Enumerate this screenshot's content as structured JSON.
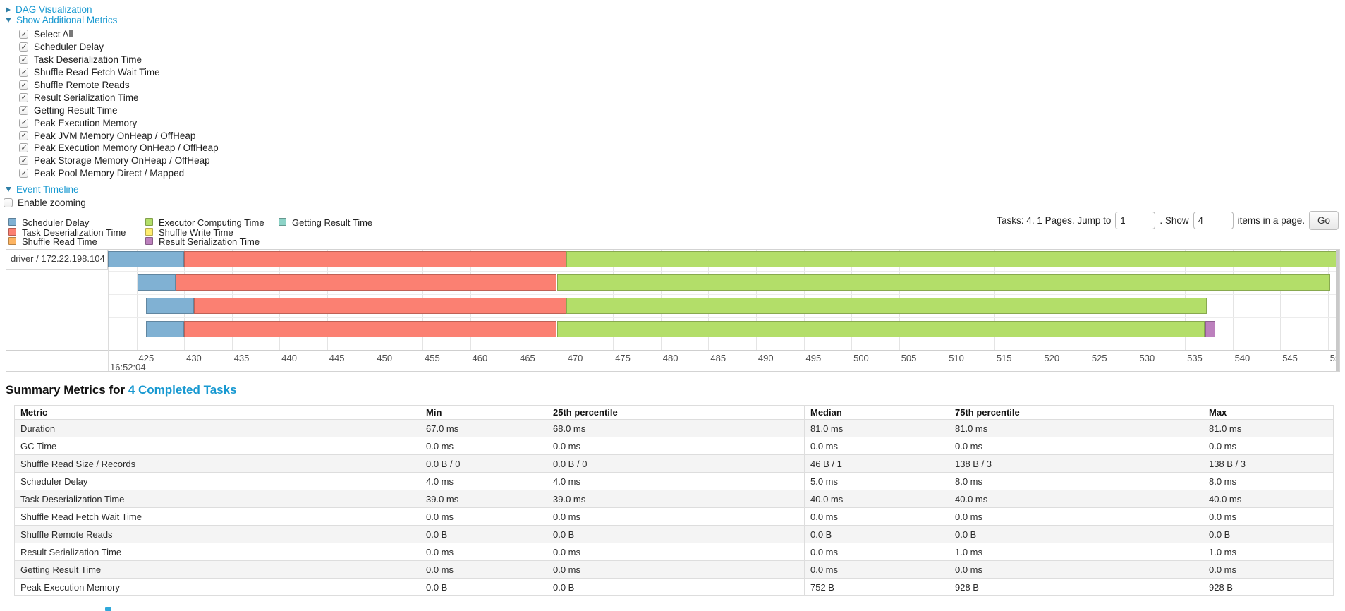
{
  "toggles": {
    "dag": "DAG Visualization",
    "metrics": "Show Additional Metrics",
    "timeline": "Event Timeline"
  },
  "metric_checkboxes": [
    {
      "label": "Select All",
      "checked": true
    },
    {
      "label": "Scheduler Delay",
      "checked": true
    },
    {
      "label": "Task Deserialization Time",
      "checked": true
    },
    {
      "label": "Shuffle Read Fetch Wait Time",
      "checked": true
    },
    {
      "label": "Shuffle Remote Reads",
      "checked": true
    },
    {
      "label": "Result Serialization Time",
      "checked": true
    },
    {
      "label": "Getting Result Time",
      "checked": true
    },
    {
      "label": "Peak Execution Memory",
      "checked": true
    },
    {
      "label": "Peak JVM Memory OnHeap / OffHeap",
      "checked": true
    },
    {
      "label": "Peak Execution Memory OnHeap / OffHeap",
      "checked": true
    },
    {
      "label": "Peak Storage Memory OnHeap / OffHeap",
      "checked": true
    },
    {
      "label": "Peak Pool Memory Direct / Mapped",
      "checked": true
    }
  ],
  "zoom_checkbox": {
    "label": "Enable zooming",
    "checked": false
  },
  "colors": {
    "scheduler_delay": "#80B1D3",
    "task_deserialization_time": "#FB8072",
    "shuffle_read_time": "#FDB462",
    "executor_computing_time": "#B3DE69",
    "shuffle_write_time": "#FFED6F",
    "result_serialization_time": "#BC80BD",
    "getting_result_time": "#8DD3C7",
    "link": "#1899d1"
  },
  "legend": {
    "columns": [
      [
        {
          "label": "Scheduler Delay",
          "key": "scheduler_delay"
        },
        {
          "label": "Task Deserialization Time",
          "key": "task_deserialization_time"
        },
        {
          "label": "Shuffle Read Time",
          "key": "shuffle_read_time"
        }
      ],
      [
        {
          "label": "Executor Computing Time",
          "key": "executor_computing_time"
        },
        {
          "label": "Shuffle Write Time",
          "key": "shuffle_write_time"
        },
        {
          "label": "Result Serialization Time",
          "key": "result_serialization_time"
        }
      ],
      [
        {
          "label": "Getting Result Time",
          "key": "getting_result_time"
        }
      ]
    ]
  },
  "pagination": {
    "tasks_text": "Tasks: 4. 1 Pages. Jump to",
    "jump_value": "1",
    "show_text": ". Show",
    "show_value": "4",
    "items_text": "items in a page.",
    "go_label": "Go"
  },
  "timeline": {
    "group_label": "driver / 172.22.198.104",
    "axis": {
      "min": 422.0,
      "max": 551.2,
      "tick_start": 425,
      "tick_end": 550,
      "tick_step": 5,
      "major_label": "16:52:04"
    },
    "bars": [
      {
        "segments": [
          {
            "key": "scheduler_delay",
            "start": 421.9,
            "end": 430.0
          },
          {
            "key": "task_deserialization_time",
            "start": 430.0,
            "end": 470.1
          },
          {
            "key": "executor_computing_time",
            "start": 470.1,
            "end": 551.2
          }
        ]
      },
      {
        "segments": [
          {
            "key": "scheduler_delay",
            "start": 425.1,
            "end": 429.1
          },
          {
            "key": "task_deserialization_time",
            "start": 429.1,
            "end": 469.1
          },
          {
            "key": "executor_computing_time",
            "start": 469.1,
            "end": 550.2
          }
        ]
      },
      {
        "segments": [
          {
            "key": "scheduler_delay",
            "start": 426.0,
            "end": 431.0
          },
          {
            "key": "task_deserialization_time",
            "start": 431.0,
            "end": 470.1
          },
          {
            "key": "executor_computing_time",
            "start": 470.1,
            "end": 537.3
          }
        ]
      },
      {
        "segments": [
          {
            "key": "scheduler_delay",
            "start": 426.0,
            "end": 430.0
          },
          {
            "key": "task_deserialization_time",
            "start": 430.0,
            "end": 469.1
          },
          {
            "key": "executor_computing_time",
            "start": 469.1,
            "end": 537.1
          },
          {
            "key": "result_serialization_time",
            "start": 537.1,
            "end": 538.2
          }
        ]
      }
    ]
  },
  "summary": {
    "heading_prefix": "Summary Metrics for ",
    "heading_link": "4 Completed Tasks"
  },
  "table": {
    "columns": [
      "Metric",
      "Min",
      "25th percentile",
      "Median",
      "75th percentile",
      "Max"
    ],
    "rows": [
      {
        "metric": "Duration",
        "values": [
          "67.0 ms",
          "68.0 ms",
          "81.0 ms",
          "81.0 ms",
          "81.0 ms"
        ]
      },
      {
        "metric": "GC Time",
        "values": [
          "0.0 ms",
          "0.0 ms",
          "0.0 ms",
          "0.0 ms",
          "0.0 ms"
        ]
      },
      {
        "metric": "Shuffle Read Size / Records",
        "values": [
          "0.0 B / 0",
          "0.0 B / 0",
          "46 B / 1",
          "138 B / 3",
          "138 B / 3"
        ]
      },
      {
        "metric": "Scheduler Delay",
        "values": [
          "4.0 ms",
          "4.0 ms",
          "5.0 ms",
          "8.0 ms",
          "8.0 ms"
        ]
      },
      {
        "metric": "Task Deserialization Time",
        "values": [
          "39.0 ms",
          "39.0 ms",
          "40.0 ms",
          "40.0 ms",
          "40.0 ms"
        ]
      },
      {
        "metric": "Shuffle Read Fetch Wait Time",
        "values": [
          "0.0 ms",
          "0.0 ms",
          "0.0 ms",
          "0.0 ms",
          "0.0 ms"
        ]
      },
      {
        "metric": "Shuffle Remote Reads",
        "values": [
          "0.0 B",
          "0.0 B",
          "0.0 B",
          "0.0 B",
          "0.0 B"
        ]
      },
      {
        "metric": "Result Serialization Time",
        "values": [
          "0.0 ms",
          "0.0 ms",
          "0.0 ms",
          "1.0 ms",
          "1.0 ms"
        ]
      },
      {
        "metric": "Getting Result Time",
        "values": [
          "0.0 ms",
          "0.0 ms",
          "0.0 ms",
          "0.0 ms",
          "0.0 ms"
        ]
      },
      {
        "metric": "Peak Execution Memory",
        "values": [
          "0.0 B",
          "0.0 B",
          "752 B",
          "928 B",
          "928 B"
        ]
      }
    ]
  }
}
